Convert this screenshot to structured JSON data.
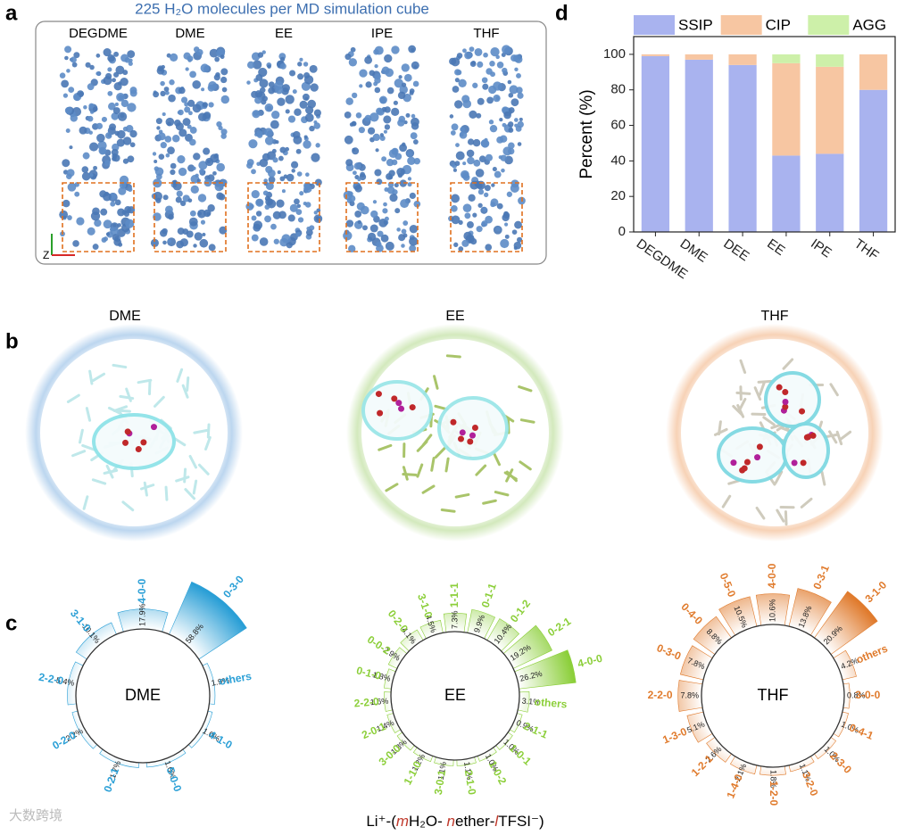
{
  "panel_labels": [
    "a",
    "b",
    "c",
    "d"
  ],
  "panel_a": {
    "title": "225 H₂O molecules per MD simulation cube",
    "solvents": [
      "DEGDME",
      "DME",
      "EE",
      "IPE",
      "THF"
    ],
    "axis_label": "Z"
  },
  "panel_b": {
    "titles": [
      "DME",
      "EE",
      "THF"
    ]
  },
  "chart_data": [
    {
      "type": "stacked_bar",
      "ylabel": "Percent (%)",
      "categories": [
        "DEGDME",
        "DME",
        "DEE",
        "EE",
        "IPE",
        "THF"
      ],
      "series": [
        {
          "name": "SSIP",
          "color": "#a9b3ef",
          "values": [
            99,
            97,
            94,
            43,
            44,
            80
          ]
        },
        {
          "name": "CIP",
          "color": "#f7c6a2",
          "values": [
            1,
            3,
            6,
            52,
            49,
            20
          ]
        },
        {
          "name": "AGG",
          "color": "#cdf0a9",
          "values": [
            0,
            0,
            0,
            5,
            7,
            0
          ]
        }
      ],
      "ylim": [
        0,
        110
      ],
      "yticks": [
        0,
        20,
        40,
        60,
        80,
        100
      ],
      "legend": "top"
    },
    {
      "type": "radial_bar",
      "title": "DME",
      "color": "#2a9fd6",
      "categories": [
        "4-0-0",
        "0-3-0",
        "others",
        "4-1-0",
        "5-0-0",
        "0-2-1",
        "0-2-0",
        "2-2-0",
        "3-1-0"
      ],
      "values": [
        17.9,
        58.8,
        1.9,
        1.0,
        1.0,
        1.7,
        2.2,
        5.4,
        10.1
      ],
      "value_labels": [
        "17.9%",
        "58.8%",
        "1.9%",
        "1.0%",
        "1.0%",
        "1.7%",
        "2.2%",
        "5.4%",
        "10.1%"
      ]
    },
    {
      "type": "radial_bar",
      "title": "EE",
      "color": "#8ccf3a",
      "categories": [
        "1-1-1",
        "0-1-1",
        "0-1-2",
        "0-2-1",
        "4-0-0",
        "others",
        "2-1-1",
        "1-0-1",
        "1-0-2",
        "2-1-0",
        "3-0-1",
        "1-1-0",
        "3-0-0",
        "2-0-1",
        "2-2-0",
        "0-1-0",
        "0-0-2",
        "0-2-0",
        "3-1-0"
      ],
      "values": [
        7.3,
        9.9,
        10.4,
        19.2,
        26.2,
        3.1,
        0.9,
        1.0,
        1.0,
        1.1,
        1.1,
        1.2,
        1.3,
        1.4,
        1.6,
        1.8,
        2.9,
        4.1,
        4.5
      ],
      "value_labels": [
        "7.3%",
        "9.9%",
        "10.4%",
        "19.2%",
        "26.2%",
        "3.1%",
        "0.9%",
        "1.0%",
        "1.0%",
        "1.1%",
        "1.1%",
        "1.2%",
        "1.3%",
        "1.4%",
        "1.6%",
        "1.8%",
        "2.9%",
        "4.1%",
        "4.5%"
      ]
    },
    {
      "type": "radial_bar",
      "title": "THF",
      "color": "#e07b2d",
      "categories": [
        "4-0-0",
        "0-3-1",
        "3-1-0",
        "others",
        "3-0-0",
        "0-4-1",
        "2-3-0",
        "3-2-0",
        "1-2-0",
        "1-4-0",
        "1-2-1",
        "1-3-0",
        "2-2-0",
        "0-3-0",
        "0-4-0",
        "0-5-0"
      ],
      "values": [
        10.6,
        13.8,
        20.9,
        4.2,
        0.8,
        1.0,
        1.0,
        1.1,
        1.8,
        2.1,
        2.6,
        5.1,
        7.8,
        7.8,
        8.8,
        10.5
      ],
      "value_labels": [
        "10.6%",
        "13.8%",
        "20.9%",
        "4.2%",
        "0.8%",
        "1.0%",
        "1.0%",
        "1.1%",
        "1.8%",
        "2.1%",
        "2.6%",
        "5.1%",
        "7.8%",
        "7.8%",
        "8.8%",
        "10.5%"
      ]
    }
  ],
  "footer": [
    "Li⁺-(",
    "m",
    "H₂O- ",
    "n",
    "ether-",
    "l",
    "TFSI⁻)"
  ],
  "watermark": "大数跨境"
}
